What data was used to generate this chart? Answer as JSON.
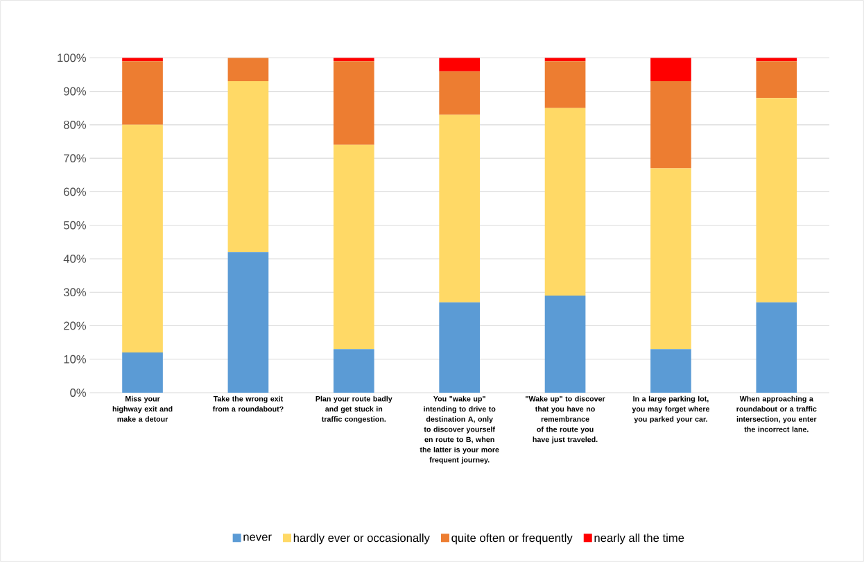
{
  "chart_data": {
    "type": "bar",
    "stacked": true,
    "categories": [
      "Miss your highway exit and make a detour",
      "Take the wrong exit from a roundabout?",
      "Plan your route badly and get stuck in traffic congestion.",
      "You \"wake up\" intending to drive to destination A, only to discover yourself en route to B, when the latter is your more frequent journey.",
      "\"Wake up\" to discover that you have no remembrance of the route you have just traveled.",
      "In a large parking lot, you may forget where you parked your car.",
      "When approaching a roundabout or a traffic intersection, you enter the incorrect lane."
    ],
    "series": [
      {
        "name": "never",
        "color": "#5b9bd5",
        "values": [
          12,
          42,
          13,
          27,
          29,
          13,
          27
        ]
      },
      {
        "name": "hardly ever or occasionally",
        "color": "#ffd966",
        "values": [
          68,
          51,
          61,
          56,
          56,
          54,
          61
        ]
      },
      {
        "name": "quite often or frequently",
        "color": "#ed7d31",
        "values": [
          19,
          7,
          25,
          13,
          14,
          26,
          11
        ]
      },
      {
        "name": "nearly all the time",
        "color": "#ff0000",
        "values": [
          1,
          0,
          1,
          4,
          1,
          7,
          1
        ]
      }
    ],
    "ylim": [
      0,
      100
    ],
    "yticks": [
      {
        "value": 0,
        "label": "0%"
      },
      {
        "value": 10,
        "label": "10%"
      },
      {
        "value": 20,
        "label": "20%"
      },
      {
        "value": 30,
        "label": "30%"
      },
      {
        "value": 40,
        "label": "40%"
      },
      {
        "value": 50,
        "label": "50%"
      },
      {
        "value": 60,
        "label": "60%"
      },
      {
        "value": 70,
        "label": "70%"
      },
      {
        "value": 80,
        "label": "80%"
      },
      {
        "value": 90,
        "label": "90%"
      },
      {
        "value": 100,
        "label": "100%"
      }
    ],
    "grid": "y",
    "legend": "bottom"
  }
}
